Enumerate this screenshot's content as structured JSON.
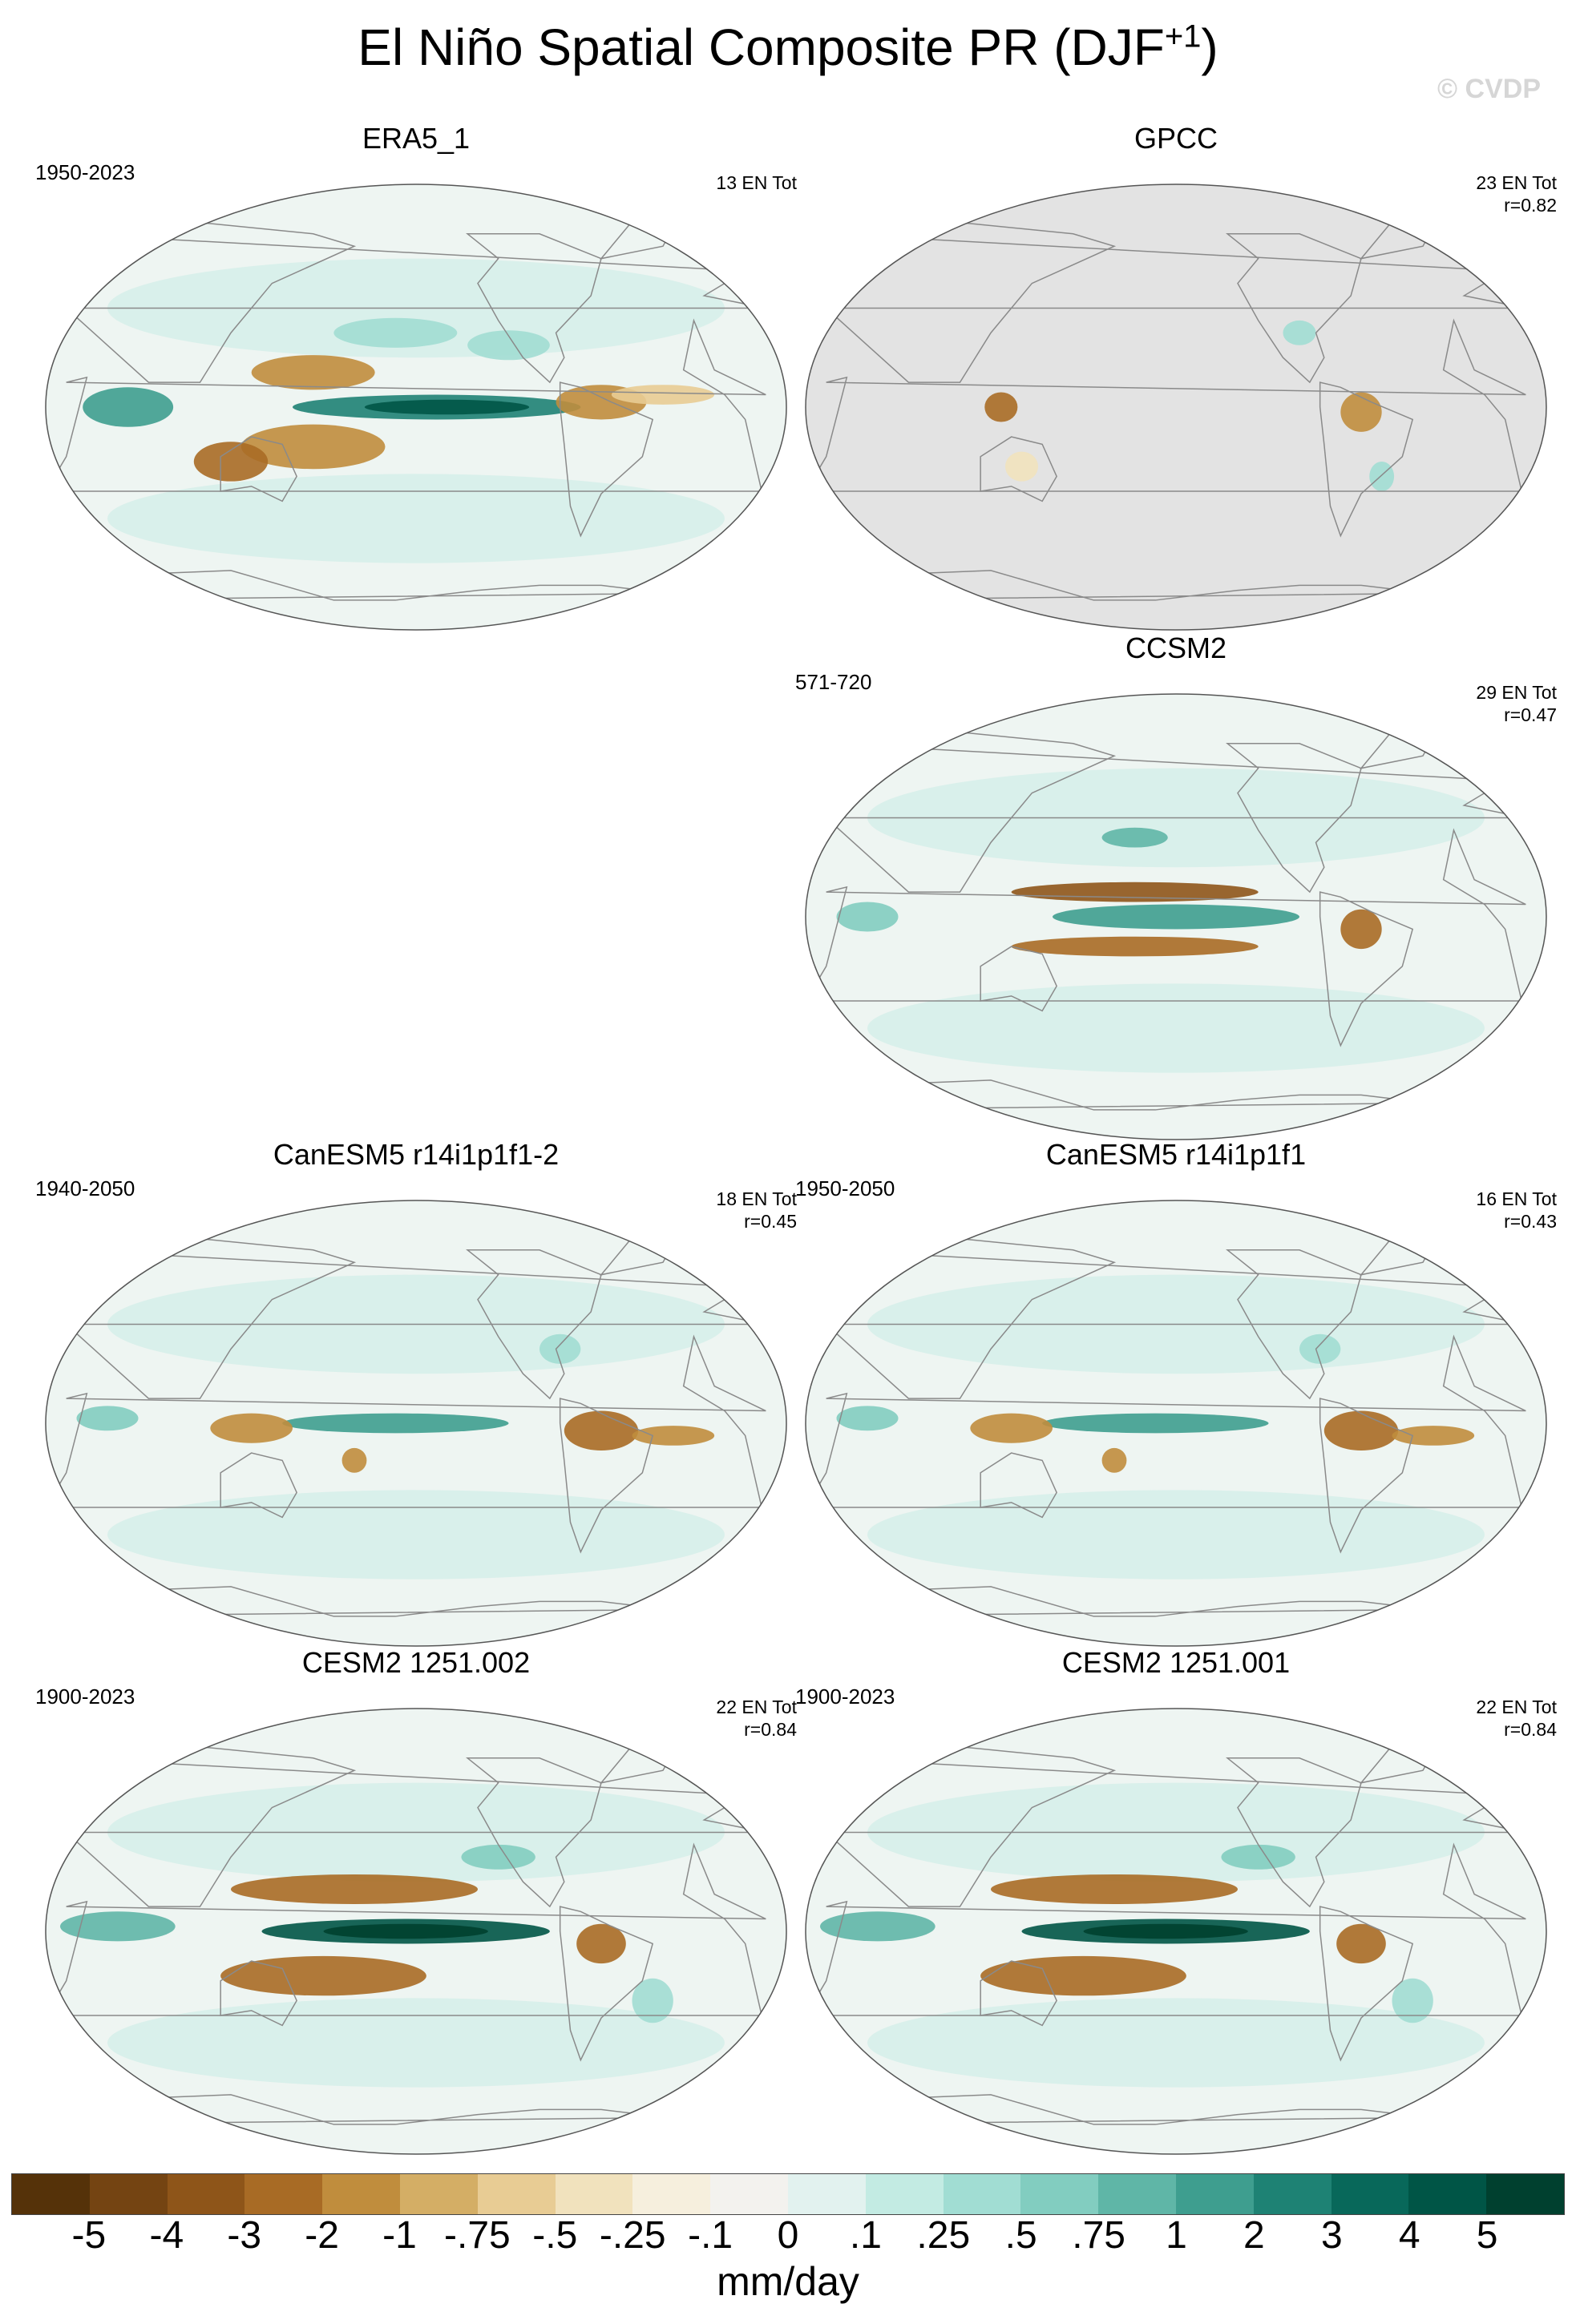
{
  "figure": {
    "title": "El Niño Spatial Composite PR (DJF",
    "title_superscript": "+1",
    "title_suffix": ")",
    "watermark": "© CVDP"
  },
  "panels": [
    {
      "id": "era5",
      "title": "ERA5_1",
      "period": "1950-2023",
      "stats_line1": "13 EN Tot",
      "stats_line2": "",
      "pattern": "obs"
    },
    {
      "id": "gpcc",
      "title": "GPCC",
      "period": "",
      "stats_line1": "23 EN Tot",
      "stats_line2": "r=0.82",
      "pattern": "land"
    },
    {
      "id": "ccsm2",
      "title": "CCSM2",
      "period": "571-720",
      "stats_line1": "29 EN Tot",
      "stats_line2": "r=0.47",
      "pattern": "ccsm"
    },
    {
      "id": "canesm5b",
      "title": "CanESM5 r14i1p1f1-2",
      "period": "1940-2050",
      "stats_line1": "18 EN Tot",
      "stats_line2": "r=0.45",
      "pattern": "can"
    },
    {
      "id": "canesm5a",
      "title": "CanESM5 r14i1p1f1",
      "period": "1950-2050",
      "stats_line1": "16 EN Tot",
      "stats_line2": "r=0.43",
      "pattern": "can"
    },
    {
      "id": "cesm2b",
      "title": "CESM2 1251.002",
      "period": "1900-2023",
      "stats_line1": "22 EN Tot",
      "stats_line2": "r=0.84",
      "pattern": "cesm"
    },
    {
      "id": "cesm2a",
      "title": "CESM2 1251.001",
      "period": "1900-2023",
      "stats_line1": "22 EN Tot",
      "stats_line2": "r=0.84",
      "pattern": "cesm"
    }
  ],
  "colorbar": {
    "colors": [
      "#553209",
      "#744412",
      "#8e5519",
      "#a86b25",
      "#c08d3d",
      "#d4ae65",
      "#e8cc94",
      "#f1e2bd",
      "#f6efdd",
      "#f3f2ee",
      "#e2f2ef",
      "#c3ebe3",
      "#a1ddd3",
      "#82cdc0",
      "#5fb6a7",
      "#3e9e8f",
      "#1e8274",
      "#08685a",
      "#005546",
      "#00402f"
    ],
    "tick_labels": [
      "-5",
      "-4",
      "-3",
      "-2",
      "-1",
      "-.75",
      "-.5",
      "-.25",
      "-.1",
      "0",
      ".1",
      ".25",
      ".5",
      ".75",
      "1",
      "2",
      "3",
      "4",
      "5"
    ],
    "units": "mm/day"
  },
  "map_colors": {
    "ocean_base": "#eef5f2",
    "missing": "#e3e3e3",
    "outline": "#555555",
    "coast": "#8a8a8a"
  }
}
